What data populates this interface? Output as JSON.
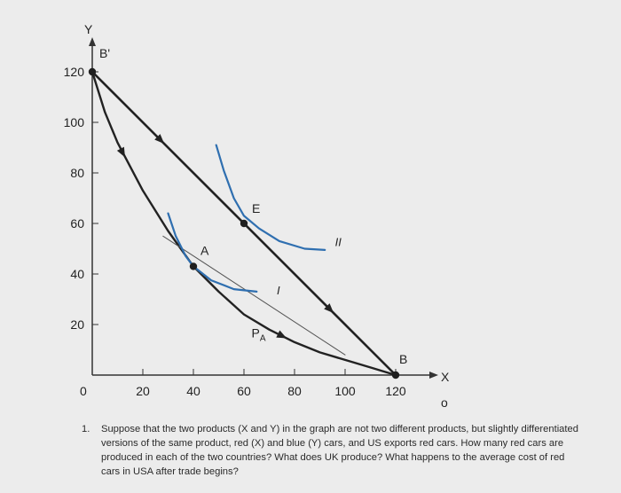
{
  "chart_data": {
    "type": "line",
    "xlabel": "X",
    "ylabel": "Y",
    "xlim": [
      0,
      120
    ],
    "ylim": [
      0,
      120
    ],
    "x_ticks": [
      0,
      20,
      40,
      60,
      80,
      100,
      120
    ],
    "y_ticks": [
      20,
      40,
      60,
      80,
      100,
      120
    ],
    "series": [
      {
        "name": "",
        "kind": "ppf",
        "points": [
          [
            0,
            120
          ],
          [
            5,
            104
          ],
          [
            10,
            92
          ],
          [
            20,
            73
          ],
          [
            30,
            57
          ],
          [
            40,
            43
          ],
          [
            50,
            33
          ],
          [
            60,
            24
          ],
          [
            70,
            18
          ],
          [
            80,
            13
          ],
          [
            90,
            9
          ],
          [
            100,
            6
          ],
          [
            110,
            3
          ],
          [
            120,
            0
          ]
        ]
      },
      {
        "name": "",
        "kind": "trade-line",
        "points": [
          [
            0,
            120
          ],
          [
            120,
            0
          ]
        ]
      },
      {
        "name": "",
        "kind": "price-line",
        "points": [
          [
            28,
            55
          ],
          [
            100,
            8
          ]
        ]
      },
      {
        "name": "I",
        "kind": "indifference",
        "points": [
          [
            30,
            64
          ],
          [
            33,
            55
          ],
          [
            37,
            47
          ],
          [
            40,
            43
          ],
          [
            47,
            37.5
          ],
          [
            56,
            34
          ],
          [
            65,
            33
          ]
        ]
      },
      {
        "name": "II",
        "kind": "indifference",
        "points": [
          [
            49,
            91
          ],
          [
            52,
            81
          ],
          [
            56,
            70
          ],
          [
            60,
            63
          ],
          [
            66,
            58
          ],
          [
            74,
            53
          ],
          [
            84,
            50
          ],
          [
            92,
            49.5
          ]
        ]
      }
    ],
    "points": [
      {
        "label": "B'",
        "x": 0,
        "y": 120
      },
      {
        "label": "A",
        "x": 40,
        "y": 43
      },
      {
        "label": "E",
        "x": 60,
        "y": 60
      },
      {
        "label": "B",
        "x": 120,
        "y": 0
      }
    ],
    "annotations": [
      {
        "text": "P",
        "sub": "A",
        "x": 63,
        "y": 15
      },
      {
        "text": "I",
        "x": 73,
        "y": 32
      },
      {
        "text": "II",
        "x": 96,
        "y": 51
      }
    ],
    "arrows": [
      {
        "series": "trade-line",
        "at": [
          27,
          93
        ]
      },
      {
        "series": "trade-line",
        "at": [
          94,
          26
        ]
      },
      {
        "series": "ppf",
        "at": [
          12,
          88
        ]
      },
      {
        "series": "ppf",
        "at": [
          75,
          15.5
        ]
      }
    ],
    "grid": false
  },
  "labels": {
    "origin": "0",
    "y_axis": "Y",
    "x_axis": "X",
    "small_mark": "o"
  },
  "question": {
    "number": "1.",
    "text": "Suppose that the two products (X and Y) in the graph are not two different products, but slightly differentiated versions of the same product, red (X) and blue (Y) cars, and US exports red cars. How many red cars are produced in each of the two countries? What does UK produce? What happens to the average cost of red cars in USA after trade begins?"
  },
  "colors": {
    "ppf": "#222222",
    "trade_line": "#222222",
    "price_line": "#555555",
    "indifference": "#2f6fb0",
    "axis": "#333333"
  }
}
